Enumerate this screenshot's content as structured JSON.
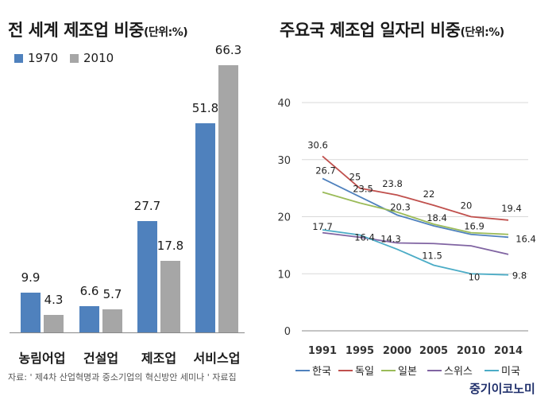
{
  "chart_data": [
    {
      "type": "bar",
      "title": "전 세계 제조업 비중",
      "unit": "(단위:%)",
      "categories": [
        "농림어업",
        "건설업",
        "제조업",
        "서비스업"
      ],
      "series": [
        {
          "name": "1970",
          "values": [
            9.9,
            6.6,
            27.7,
            51.8
          ],
          "color": "#4f81bd"
        },
        {
          "name": "2010",
          "values": [
            4.3,
            5.7,
            17.8,
            66.3
          ],
          "color": "#a6a6a6"
        }
      ],
      "ylim": [
        0,
        66.3
      ],
      "legend_position": "top-left",
      "grid": false
    },
    {
      "type": "line",
      "title": "주요국 제조업 일자리 비중",
      "unit": "(단위:%)",
      "x": [
        "1991",
        "1995",
        "2000",
        "2005",
        "2010",
        "2014"
      ],
      "yticks": [
        "0",
        "10",
        "20",
        "30",
        "40"
      ],
      "ylim": [
        0,
        40
      ],
      "grid": true,
      "legend_position": "bottom",
      "series": [
        {
          "name": "한국",
          "values": [
            26.7,
            23.5,
            20.3,
            18.4,
            16.9,
            16.4
          ],
          "color": "#4f81bd",
          "labeled": true
        },
        {
          "name": "독일",
          "values": [
            30.6,
            25,
            23.8,
            22,
            20,
            19.4
          ],
          "color": "#c0504d",
          "labeled": true
        },
        {
          "name": "일본",
          "values": [
            24.3,
            22.4,
            20.8,
            18.7,
            17.2,
            16.9
          ],
          "color": "#9bbb59",
          "labeled": false
        },
        {
          "name": "스위스",
          "values": [
            17.2,
            16.4,
            15.4,
            15.3,
            14.9,
            13.4
          ],
          "color": "#8064a2",
          "labeled": false
        },
        {
          "name": "미국",
          "values": [
            17.7,
            16.8,
            14.3,
            11.5,
            10,
            9.8
          ],
          "color": "#4bacc6",
          "labeled": true
        }
      ],
      "point_labels": [
        {
          "text": "30.6",
          "series": 1,
          "index": 0
        },
        {
          "text": "26.7",
          "series": 0,
          "index": 0
        },
        {
          "text": "17.7",
          "series": 4,
          "index": 0
        },
        {
          "text": "25",
          "series": 1,
          "index": 1
        },
        {
          "text": "23.5",
          "series": 0,
          "index": 1
        },
        {
          "text": "16.4",
          "series": 3,
          "index": 1
        },
        {
          "text": "23.8",
          "series": 1,
          "index": 2
        },
        {
          "text": "20.3",
          "series": 0,
          "index": 2
        },
        {
          "text": "14.3",
          "series": 4,
          "index": 2
        },
        {
          "text": "22",
          "series": 1,
          "index": 3
        },
        {
          "text": "18.4",
          "series": 0,
          "index": 3
        },
        {
          "text": "11.5",
          "series": 4,
          "index": 3
        },
        {
          "text": "20",
          "series": 1,
          "index": 4
        },
        {
          "text": "16.9",
          "series": 0,
          "index": 4
        },
        {
          "text": "10",
          "series": 4,
          "index": 4
        },
        {
          "text": "19.4",
          "series": 1,
          "index": 5
        },
        {
          "text": "16.4",
          "series": 0,
          "index": 5
        },
        {
          "text": "9.8",
          "series": 4,
          "index": 5
        }
      ]
    }
  ],
  "source_note": "자료: ' 제4차 산업혁명과 중소기업의 혁신방안 세미나 ' 자료집",
  "brand": "중기이코노미"
}
